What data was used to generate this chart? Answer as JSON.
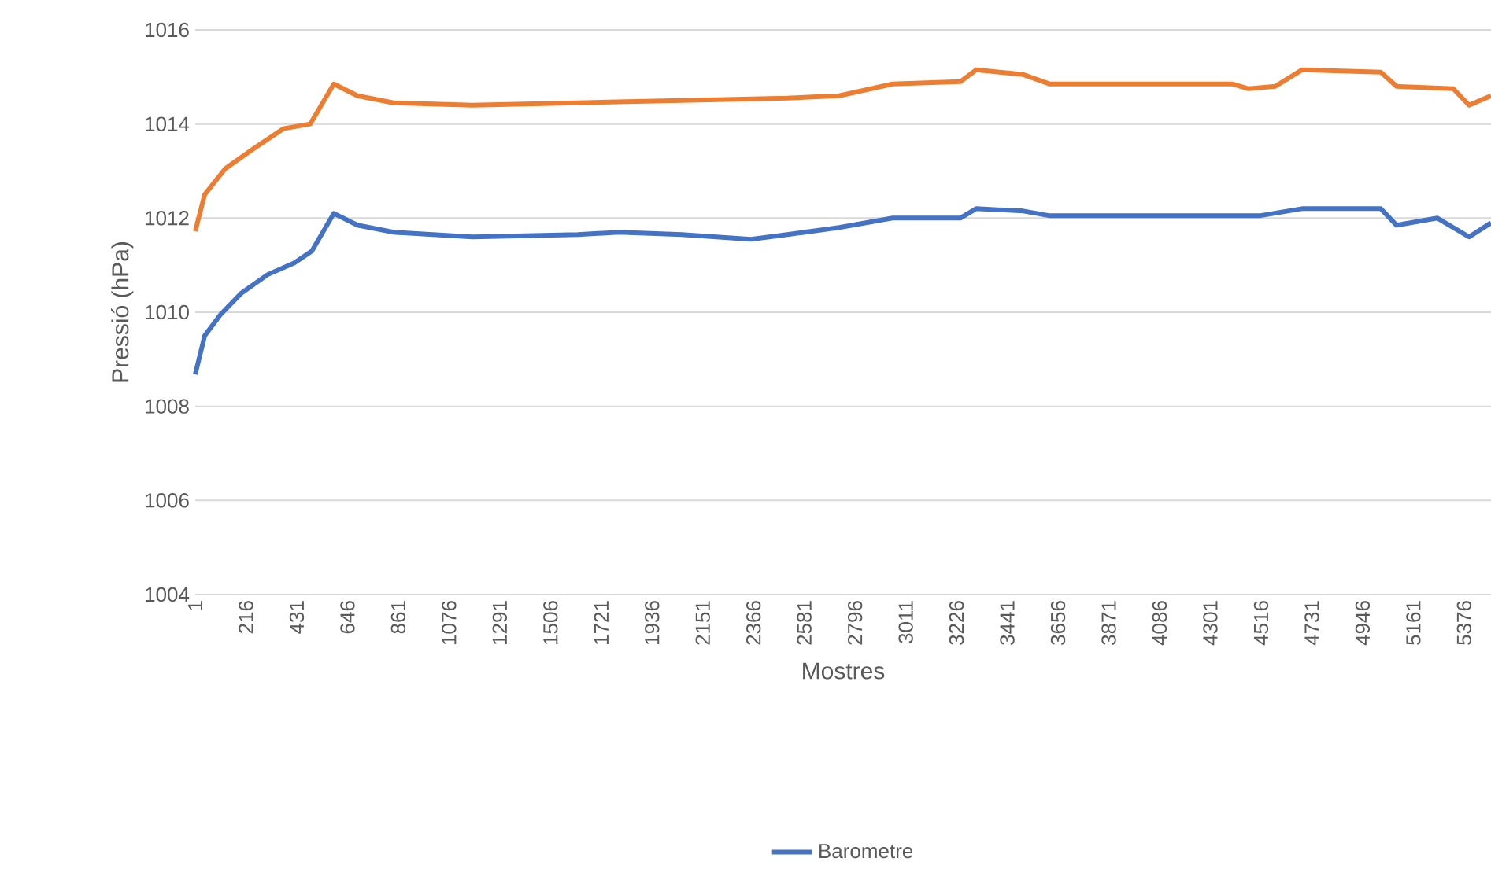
{
  "chart_data": {
    "type": "line",
    "xlabel": "Mostres",
    "ylabel": "Pressió (hPa)",
    "xlim": [
      1,
      5490
    ],
    "ylim": [
      1004,
      1016
    ],
    "xticks": [
      1,
      216,
      431,
      646,
      861,
      1076,
      1291,
      1506,
      1721,
      1936,
      2151,
      2366,
      2581,
      2796,
      3011,
      3226,
      3441,
      3656,
      3871,
      4086,
      4301,
      4516,
      4731,
      4946,
      5161,
      5376
    ],
    "yticks": [
      1004,
      1006,
      1008,
      1010,
      1012,
      1014,
      1016
    ],
    "grid": "y",
    "legend": "bottom",
    "series": [
      {
        "name": "Barometre",
        "color": "#4472c4",
        "x": [
          1,
          41,
          108,
          195,
          308,
          421,
          495,
          588,
          688,
          841,
          1175,
          1622,
          1795,
          2062,
          2355,
          2509,
          2729,
          2955,
          3242,
          3309,
          3509,
          3622,
          4062,
          4509,
          4689,
          5023,
          5090,
          5263,
          5397,
          5490
        ],
        "values": [
          1008.68,
          1009.5,
          1009.95,
          1010.4,
          1010.8,
          1011.05,
          1011.3,
          1012.1,
          1011.85,
          1011.7,
          1011.6,
          1011.65,
          1011.7,
          1011.65,
          1011.55,
          1011.65,
          1011.8,
          1012.0,
          1012.0,
          1012.2,
          1012.15,
          1012.05,
          1012.05,
          1012.05,
          1012.2,
          1012.2,
          1011.85,
          1012.0,
          1011.6,
          1011.9
        ]
      },
      {
        "color": "#ed7d31",
        "x": [
          1,
          41,
          128,
          241,
          374,
          488,
          588,
          688,
          841,
          1175,
          1622,
          2062,
          2509,
          2729,
          2955,
          3242,
          3309,
          3509,
          3622,
          4396,
          4463,
          4576,
          4689,
          5023,
          5090,
          5330,
          5397,
          5490
        ],
        "values": [
          1011.72,
          1012.5,
          1013.05,
          1013.45,
          1013.9,
          1014.0,
          1014.85,
          1014.6,
          1014.45,
          1014.4,
          1014.45,
          1014.5,
          1014.55,
          1014.6,
          1014.85,
          1014.9,
          1015.15,
          1015.05,
          1014.85,
          1014.85,
          1014.75,
          1014.8,
          1015.15,
          1015.1,
          1014.8,
          1014.75,
          1014.4,
          1014.6
        ]
      }
    ]
  }
}
